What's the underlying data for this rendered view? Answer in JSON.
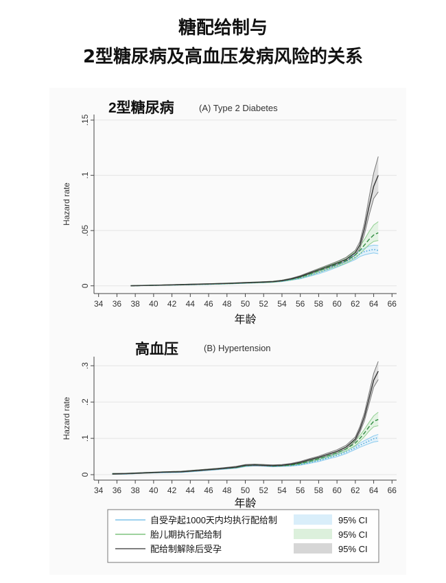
{
  "page": {
    "title_line_1": "糖配给制与",
    "title_line_2": "2型糖尿病及高血压发病风险的关系"
  },
  "legend": {
    "items": [
      {
        "label": "自受孕起1000天内均执行配给制",
        "ci_label": "95% CI",
        "line_color": "#7ec4e8",
        "band_color": "#d9eefa"
      },
      {
        "label": "胎儿期执行配给制",
        "ci_label": "95% CI",
        "line_color": "#7fc47f",
        "band_color": "#dcf0dc"
      },
      {
        "label": "配给制解除后受孕",
        "ci_label": "95% CI",
        "line_color": "#555555",
        "band_color": "#d6d6d6"
      }
    ]
  },
  "chart_data": [
    {
      "type": "line",
      "chinese_title": "2型糖尿病",
      "title": "(A) Type 2 Diabetes",
      "xlabel": "年龄",
      "ylabel": "Hazard rate",
      "xlim": [
        33.5,
        66.5
      ],
      "ylim": [
        -0.007,
        0.155
      ],
      "xticks": [
        34,
        36,
        38,
        40,
        42,
        44,
        46,
        48,
        50,
        52,
        54,
        56,
        58,
        60,
        62,
        64,
        66
      ],
      "yticks": [
        {
          "value": 0,
          "label": "0"
        },
        {
          "value": 0.05,
          "label": ".05"
        },
        {
          "value": 0.1,
          "label": ".1"
        },
        {
          "value": 0.15,
          "label": ".15"
        }
      ],
      "grid": true,
      "series": [
        {
          "name": "自受孕起1000天内均执行配给制",
          "color": "#3a9fd6",
          "style": "dotted",
          "x": [
            37.5,
            40,
            42,
            44,
            46,
            48,
            50,
            52,
            53,
            54,
            55,
            56,
            57,
            58,
            59,
            60,
            61,
            62,
            62.5,
            63,
            63.5,
            64,
            64.5
          ],
          "y": [
            0,
            0.0004,
            0.0007,
            0.001,
            0.0014,
            0.0019,
            0.0025,
            0.0031,
            0.0035,
            0.0042,
            0.0055,
            0.007,
            0.0095,
            0.012,
            0.015,
            0.0185,
            0.022,
            0.026,
            0.029,
            0.031,
            0.032,
            0.033,
            0.032
          ],
          "ci_low": [
            0,
            0.0003,
            0.0006,
            0.0009,
            0.0012,
            0.0017,
            0.0022,
            0.0028,
            0.0032,
            0.0038,
            0.005,
            0.0063,
            0.0086,
            0.0108,
            0.0136,
            0.0168,
            0.0202,
            0.0238,
            0.0265,
            0.028,
            0.029,
            0.0298,
            0.029
          ],
          "ci_high": [
            0.0003,
            0.0006,
            0.0009,
            0.0012,
            0.0016,
            0.0022,
            0.0028,
            0.0035,
            0.0039,
            0.0047,
            0.0061,
            0.0078,
            0.0105,
            0.0133,
            0.0164,
            0.0202,
            0.024,
            0.0284,
            0.0318,
            0.034,
            0.036,
            0.0368,
            0.0365
          ]
        },
        {
          "name": "胎儿期执行配给制",
          "color": "#2e8b3e",
          "style": "dashed",
          "x": [
            37.5,
            40,
            42,
            44,
            46,
            48,
            50,
            52,
            53,
            54,
            55,
            56,
            57,
            58,
            59,
            60,
            61,
            62,
            62.5,
            63,
            63.5,
            64,
            64.5
          ],
          "y": [
            0,
            0.0005,
            0.0008,
            0.0012,
            0.0016,
            0.0021,
            0.0027,
            0.0033,
            0.0037,
            0.0046,
            0.006,
            0.0078,
            0.0105,
            0.0135,
            0.0165,
            0.0195,
            0.023,
            0.028,
            0.032,
            0.037,
            0.042,
            0.046,
            0.048
          ],
          "ci_low": [
            0,
            0.0003,
            0.0006,
            0.0009,
            0.0013,
            0.0017,
            0.0023,
            0.0028,
            0.0032,
            0.004,
            0.0052,
            0.0068,
            0.0092,
            0.012,
            0.0148,
            0.0175,
            0.0207,
            0.0252,
            0.0288,
            0.0332,
            0.0372,
            0.0402,
            0.041
          ],
          "ci_high": [
            0.0003,
            0.0007,
            0.001,
            0.0015,
            0.0019,
            0.0025,
            0.0031,
            0.0038,
            0.0042,
            0.0052,
            0.0068,
            0.0088,
            0.0118,
            0.015,
            0.0182,
            0.0215,
            0.0255,
            0.031,
            0.036,
            0.042,
            0.049,
            0.055,
            0.058
          ]
        },
        {
          "name": "配给制解除后受孕",
          "color": "#333333",
          "style": "solid",
          "x": [
            37.5,
            40,
            42,
            44,
            46,
            48,
            50,
            52,
            53,
            54,
            55,
            56,
            57,
            58,
            59,
            60,
            61,
            62,
            62.5,
            63,
            63.5,
            64,
            64.5
          ],
          "y": [
            0,
            0.0005,
            0.0009,
            0.0013,
            0.0017,
            0.0022,
            0.0028,
            0.0034,
            0.0038,
            0.0047,
            0.0063,
            0.0085,
            0.0115,
            0.0145,
            0.0175,
            0.0205,
            0.024,
            0.03,
            0.037,
            0.052,
            0.072,
            0.09,
            0.1
          ],
          "ci_low": [
            0,
            0.0004,
            0.0007,
            0.0011,
            0.0015,
            0.002,
            0.0025,
            0.0031,
            0.0035,
            0.0043,
            0.0058,
            0.0078,
            0.0106,
            0.0134,
            0.0162,
            0.019,
            0.0222,
            0.0278,
            0.034,
            0.047,
            0.064,
            0.079,
            0.085
          ],
          "ci_high": [
            0.0003,
            0.0006,
            0.0011,
            0.0015,
            0.0019,
            0.0024,
            0.0031,
            0.0037,
            0.0041,
            0.0051,
            0.0068,
            0.0092,
            0.0124,
            0.0156,
            0.0188,
            0.022,
            0.0258,
            0.0322,
            0.04,
            0.057,
            0.08,
            0.102,
            0.117
          ]
        }
      ]
    },
    {
      "type": "line",
      "chinese_title": "高血压",
      "title": "(B) Hypertension",
      "xlabel": "年龄",
      "ylabel": "Hazard rate",
      "xlim": [
        33.5,
        66.5
      ],
      "ylim": [
        -0.015,
        0.325
      ],
      "xticks": [
        34,
        36,
        38,
        40,
        42,
        44,
        46,
        48,
        50,
        52,
        54,
        56,
        58,
        60,
        62,
        64,
        66
      ],
      "yticks": [
        {
          "value": 0,
          "label": "0"
        },
        {
          "value": 0.1,
          "label": ".1"
        },
        {
          "value": 0.2,
          "label": ".2"
        },
        {
          "value": 0.3,
          "label": ".3"
        }
      ],
      "grid": true,
      "series": [
        {
          "name": "自受孕起1000天内均执行配给制",
          "color": "#3a9fd6",
          "style": "dotted",
          "x": [
            35.5,
            37,
            39,
            41,
            43,
            45,
            47,
            49,
            50,
            51,
            52,
            53,
            54,
            55,
            56,
            57,
            58,
            59,
            60,
            61,
            62,
            62.5,
            63,
            63.5,
            64,
            64.5
          ],
          "y": [
            0.002,
            0.002,
            0.005,
            0.006,
            0.007,
            0.011,
            0.015,
            0.019,
            0.024,
            0.026,
            0.025,
            0.023,
            0.024,
            0.025,
            0.028,
            0.033,
            0.039,
            0.046,
            0.053,
            0.062,
            0.074,
            0.081,
            0.087,
            0.093,
            0.099,
            0.102
          ],
          "ci_low": [
            0.001,
            0.0015,
            0.004,
            0.005,
            0.006,
            0.0095,
            0.0135,
            0.0175,
            0.022,
            0.024,
            0.023,
            0.0215,
            0.0225,
            0.0235,
            0.026,
            0.031,
            0.036,
            0.043,
            0.0495,
            0.058,
            0.0695,
            0.0755,
            0.0805,
            0.0855,
            0.09,
            0.092
          ],
          "ci_high": [
            0.0035,
            0.003,
            0.006,
            0.007,
            0.0085,
            0.0125,
            0.0165,
            0.0205,
            0.026,
            0.028,
            0.027,
            0.025,
            0.0255,
            0.027,
            0.03,
            0.035,
            0.042,
            0.049,
            0.0565,
            0.066,
            0.0785,
            0.087,
            0.094,
            0.1,
            0.107,
            0.111
          ]
        },
        {
          "name": "胎儿期执行配给制",
          "color": "#2e8b3e",
          "style": "dashed",
          "x": [
            35.5,
            37,
            39,
            41,
            43,
            45,
            47,
            49,
            50,
            51,
            52,
            53,
            54,
            55,
            56,
            57,
            58,
            59,
            60,
            61,
            62,
            62.5,
            63,
            63.5,
            64,
            64.5
          ],
          "y": [
            0.002,
            0.003,
            0.005,
            0.007,
            0.008,
            0.012,
            0.016,
            0.02,
            0.025,
            0.027,
            0.026,
            0.024,
            0.025,
            0.027,
            0.031,
            0.037,
            0.044,
            0.052,
            0.06,
            0.071,
            0.087,
            0.1,
            0.115,
            0.132,
            0.147,
            0.152
          ],
          "ci_low": [
            0.001,
            0.002,
            0.004,
            0.006,
            0.007,
            0.0105,
            0.0145,
            0.0185,
            0.023,
            0.025,
            0.024,
            0.0225,
            0.0235,
            0.025,
            0.029,
            0.034,
            0.041,
            0.048,
            0.0555,
            0.0655,
            0.08,
            0.092,
            0.105,
            0.12,
            0.132,
            0.135
          ],
          "ci_high": [
            0.0035,
            0.004,
            0.006,
            0.008,
            0.0095,
            0.0135,
            0.0175,
            0.0215,
            0.027,
            0.029,
            0.028,
            0.0255,
            0.0265,
            0.029,
            0.033,
            0.04,
            0.047,
            0.056,
            0.0645,
            0.0765,
            0.094,
            0.108,
            0.125,
            0.144,
            0.162,
            0.172
          ]
        },
        {
          "name": "配给制解除后受孕",
          "color": "#333333",
          "style": "solid",
          "x": [
            35.5,
            37,
            39,
            41,
            43,
            45,
            47,
            49,
            50,
            51,
            52,
            53,
            54,
            55,
            56,
            57,
            58,
            59,
            60,
            61,
            62,
            62.5,
            63,
            63.5,
            64,
            64.5
          ],
          "y": [
            0.002,
            0.003,
            0.005,
            0.007,
            0.008,
            0.012,
            0.016,
            0.021,
            0.026,
            0.027,
            0.026,
            0.025,
            0.026,
            0.029,
            0.034,
            0.041,
            0.048,
            0.056,
            0.064,
            0.076,
            0.098,
            0.125,
            0.16,
            0.21,
            0.26,
            0.285
          ],
          "ci_low": [
            0.001,
            0.002,
            0.004,
            0.006,
            0.007,
            0.0105,
            0.0145,
            0.019,
            0.024,
            0.025,
            0.024,
            0.023,
            0.024,
            0.027,
            0.0315,
            0.038,
            0.045,
            0.052,
            0.0595,
            0.071,
            0.092,
            0.117,
            0.149,
            0.195,
            0.241,
            0.262
          ],
          "ci_high": [
            0.0035,
            0.004,
            0.006,
            0.008,
            0.0095,
            0.0135,
            0.0175,
            0.023,
            0.028,
            0.029,
            0.028,
            0.027,
            0.028,
            0.031,
            0.0365,
            0.044,
            0.051,
            0.06,
            0.0685,
            0.081,
            0.104,
            0.133,
            0.171,
            0.225,
            0.279,
            0.312
          ]
        }
      ]
    }
  ]
}
